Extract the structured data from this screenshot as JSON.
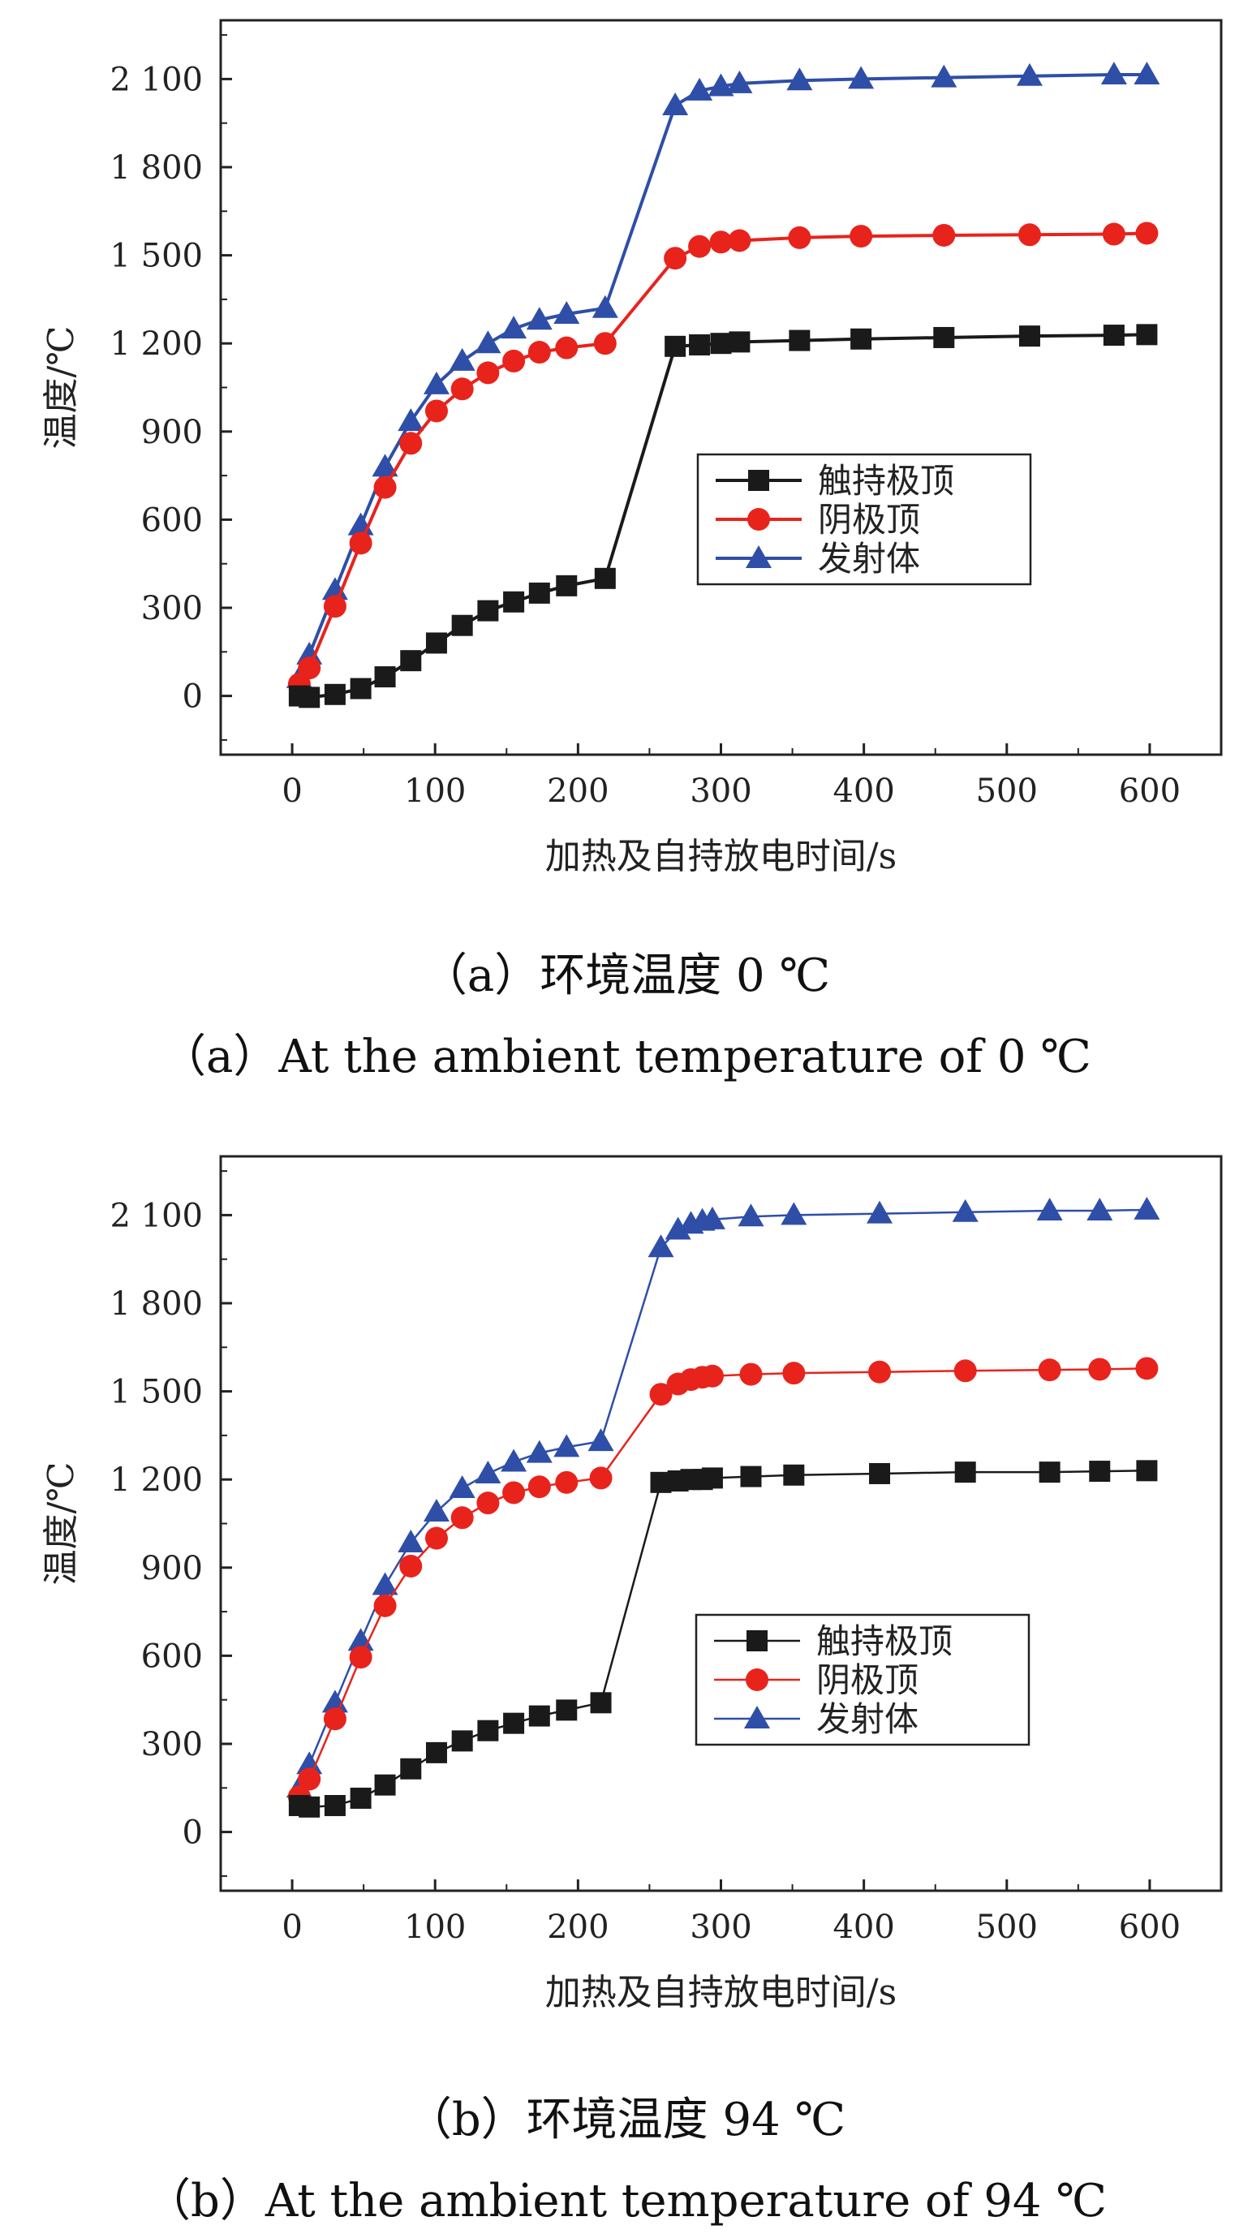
{
  "colors": {
    "series1": "#1a1a1a",
    "series2": "#e8231c",
    "series3": "#2e4ea8",
    "axis": "#222222"
  },
  "panels": [
    {
      "caption_cn": "（a）环境温度 0 ℃",
      "caption_en": "（a）At the ambient temperature of 0 ℃"
    },
    {
      "caption_cn": "（b）环境温度 94 ℃",
      "caption_en": "（b）At the ambient temperature of 94 ℃"
    }
  ],
  "chart_data": [
    {
      "type": "line",
      "title": "",
      "xlabel": "加热及自持放电时间/s",
      "ylabel": "温度/℃",
      "xlim": [
        -50,
        650
      ],
      "ylim": [
        -200,
        2300
      ],
      "xticks": [
        0,
        100,
        200,
        300,
        400,
        500,
        600
      ],
      "yticks": [
        0,
        300,
        600,
        900,
        1200,
        1500,
        1800,
        2100
      ],
      "ytick_labels": [
        "0",
        "300",
        "600",
        "900",
        "1 200",
        "1 500",
        "1 800",
        "2 100"
      ],
      "legend_position": "center-right",
      "series": [
        {
          "name": "触持极顶",
          "marker": "square",
          "color": "#1a1a1a",
          "points": [
            [
              5,
              0
            ],
            [
              12,
              -5
            ],
            [
              30,
              5
            ],
            [
              48,
              25
            ],
            [
              65,
              65
            ],
            [
              83,
              120
            ],
            [
              101,
              180
            ],
            [
              119,
              240
            ],
            [
              137,
              290
            ],
            [
              155,
              320
            ],
            [
              173,
              350
            ],
            [
              192,
              375
            ],
            [
              219,
              400
            ],
            [
              268,
              1190
            ],
            [
              285,
              1195
            ],
            [
              300,
              1200
            ],
            [
              313,
              1205
            ],
            [
              355,
              1210
            ],
            [
              398,
              1215
            ],
            [
              456,
              1220
            ],
            [
              516,
              1225
            ],
            [
              575,
              1228
            ],
            [
              598,
              1230
            ]
          ]
        },
        {
          "name": "阴极顶",
          "marker": "circle",
          "color": "#e8231c",
          "points": [
            [
              5,
              40
            ],
            [
              12,
              95
            ],
            [
              30,
              305
            ],
            [
              48,
              520
            ],
            [
              65,
              710
            ],
            [
              83,
              860
            ],
            [
              101,
              970
            ],
            [
              119,
              1045
            ],
            [
              137,
              1100
            ],
            [
              155,
              1140
            ],
            [
              173,
              1170
            ],
            [
              192,
              1185
            ],
            [
              219,
              1200
            ],
            [
              268,
              1490
            ],
            [
              285,
              1530
            ],
            [
              300,
              1545
            ],
            [
              313,
              1550
            ],
            [
              355,
              1560
            ],
            [
              398,
              1565
            ],
            [
              456,
              1568
            ],
            [
              516,
              1570
            ],
            [
              575,
              1572
            ],
            [
              598,
              1575
            ]
          ]
        },
        {
          "name": "发射体",
          "marker": "triangle",
          "color": "#2e4ea8",
          "points": [
            [
              5,
              60
            ],
            [
              12,
              140
            ],
            [
              30,
              360
            ],
            [
              48,
              580
            ],
            [
              65,
              780
            ],
            [
              83,
              935
            ],
            [
              101,
              1060
            ],
            [
              119,
              1140
            ],
            [
              137,
              1200
            ],
            [
              155,
              1250
            ],
            [
              173,
              1280
            ],
            [
              192,
              1300
            ],
            [
              219,
              1320
            ],
            [
              268,
              2010
            ],
            [
              285,
              2060
            ],
            [
              300,
              2075
            ],
            [
              313,
              2085
            ],
            [
              355,
              2095
            ],
            [
              398,
              2100
            ],
            [
              456,
              2105
            ],
            [
              516,
              2110
            ],
            [
              575,
              2115
            ],
            [
              598,
              2115
            ]
          ]
        }
      ]
    },
    {
      "type": "line",
      "title": "",
      "xlabel": "加热及自持放电时间/s",
      "ylabel": "温度/℃",
      "xlim": [
        -50,
        650
      ],
      "ylim": [
        -200,
        2300
      ],
      "xticks": [
        0,
        100,
        200,
        300,
        400,
        500,
        600
      ],
      "yticks": [
        0,
        300,
        600,
        900,
        1200,
        1500,
        1800,
        2100
      ],
      "ytick_labels": [
        "0",
        "300",
        "600",
        "900",
        "1 200",
        "1 500",
        "1 800",
        "2 100"
      ],
      "legend_position": "center-right",
      "series": [
        {
          "name": "触持极顶",
          "marker": "square",
          "color": "#1a1a1a",
          "points": [
            [
              5,
              90
            ],
            [
              12,
              85
            ],
            [
              30,
              90
            ],
            [
              48,
              115
            ],
            [
              65,
              160
            ],
            [
              83,
              215
            ],
            [
              101,
              270
            ],
            [
              119,
              310
            ],
            [
              137,
              345
            ],
            [
              155,
              370
            ],
            [
              173,
              395
            ],
            [
              192,
              415
            ],
            [
              216,
              440
            ],
            [
              258,
              1190
            ],
            [
              270,
              1195
            ],
            [
              279,
              1200
            ],
            [
              287,
              1200
            ],
            [
              294,
              1205
            ],
            [
              321,
              1210
            ],
            [
              351,
              1215
            ],
            [
              411,
              1220
            ],
            [
              471,
              1225
            ],
            [
              530,
              1225
            ],
            [
              565,
              1228
            ],
            [
              598,
              1230
            ]
          ]
        },
        {
          "name": "阴极顶",
          "marker": "circle",
          "color": "#e8231c",
          "points": [
            [
              5,
              120
            ],
            [
              12,
              180
            ],
            [
              30,
              385
            ],
            [
              48,
              595
            ],
            [
              65,
              770
            ],
            [
              83,
              905
            ],
            [
              101,
              1000
            ],
            [
              119,
              1070
            ],
            [
              137,
              1120
            ],
            [
              155,
              1155
            ],
            [
              173,
              1175
            ],
            [
              192,
              1190
            ],
            [
              216,
              1205
            ],
            [
              258,
              1490
            ],
            [
              270,
              1525
            ],
            [
              279,
              1540
            ],
            [
              287,
              1548
            ],
            [
              294,
              1552
            ],
            [
              321,
              1558
            ],
            [
              351,
              1562
            ],
            [
              411,
              1566
            ],
            [
              471,
              1570
            ],
            [
              530,
              1573
            ],
            [
              565,
              1575
            ],
            [
              598,
              1578
            ]
          ]
        },
        {
          "name": "发射体",
          "marker": "triangle",
          "color": "#2e4ea8",
          "points": [
            [
              5,
              150
            ],
            [
              12,
              230
            ],
            [
              30,
              440
            ],
            [
              48,
              650
            ],
            [
              65,
              840
            ],
            [
              83,
              985
            ],
            [
              101,
              1090
            ],
            [
              119,
              1170
            ],
            [
              137,
              1220
            ],
            [
              155,
              1260
            ],
            [
              173,
              1290
            ],
            [
              192,
              1310
            ],
            [
              216,
              1330
            ],
            [
              258,
              1990
            ],
            [
              270,
              2050
            ],
            [
              279,
              2070
            ],
            [
              287,
              2080
            ],
            [
              294,
              2085
            ],
            [
              321,
              2095
            ],
            [
              351,
              2100
            ],
            [
              411,
              2105
            ],
            [
              471,
              2110
            ],
            [
              530,
              2115
            ],
            [
              565,
              2115
            ],
            [
              598,
              2118
            ]
          ]
        }
      ]
    }
  ]
}
